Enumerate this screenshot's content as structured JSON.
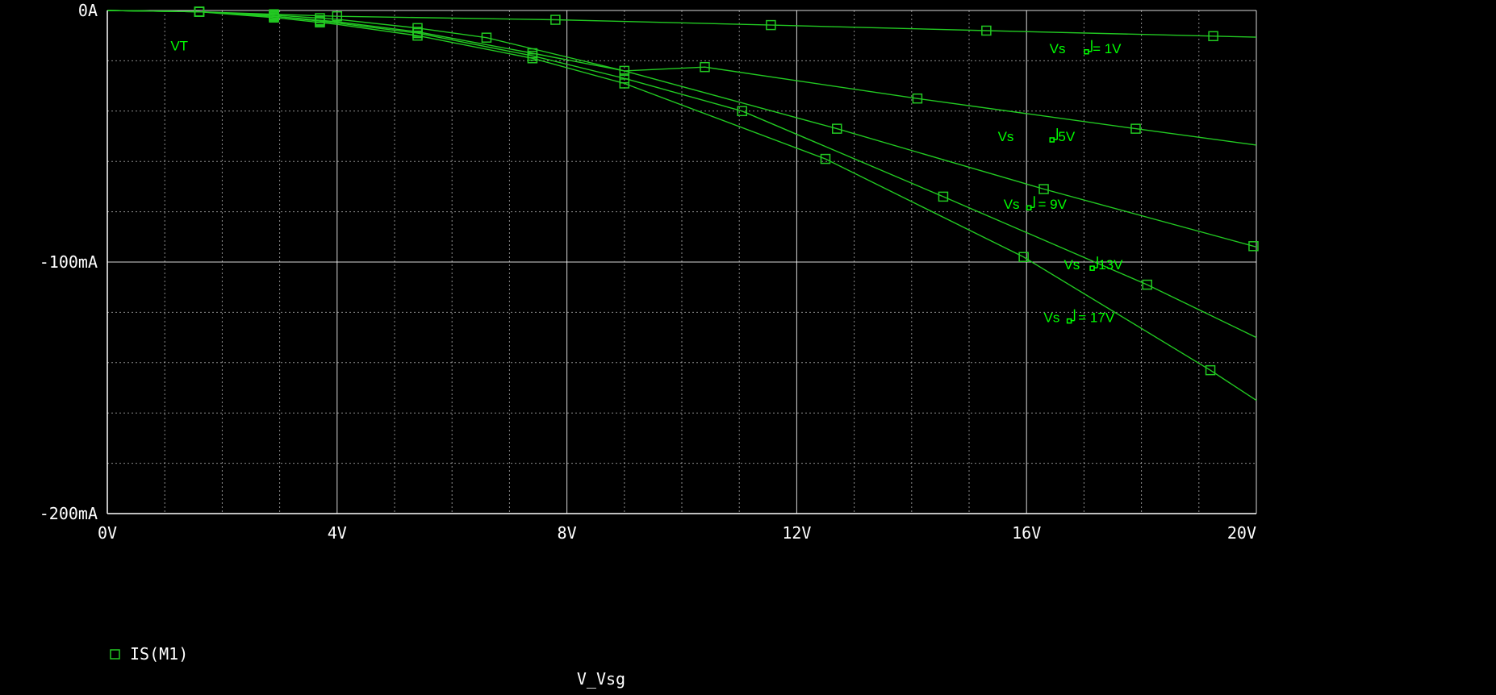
{
  "colors": {
    "background": "#000000",
    "grid": "#ffffff",
    "axis_text": "#ffffff",
    "trace": "#22c922",
    "annotation": "#00ff00"
  },
  "chart_data": {
    "type": "line",
    "xlabel": "V_Vsg",
    "ylabel": "",
    "xlim": [
      0,
      20
    ],
    "ylim": [
      -200,
      0
    ],
    "x_unit": "V",
    "y_unit": "mA",
    "grid": true,
    "marker": "square",
    "x_ticks": [
      {
        "value": 0,
        "label": "0V"
      },
      {
        "value": 4,
        "label": "4V"
      },
      {
        "value": 8,
        "label": "8V"
      },
      {
        "value": 12,
        "label": "12V"
      },
      {
        "value": 16,
        "label": "16V"
      },
      {
        "value": 20,
        "label": "20V"
      }
    ],
    "y_ticks": [
      {
        "value": 0,
        "label": "0A"
      },
      {
        "value": -100,
        "label": "-100mA"
      },
      {
        "value": -200,
        "label": "-200mA"
      }
    ],
    "legend": [
      {
        "marker": "□",
        "label": "IS(M1)"
      }
    ],
    "annotations": [
      {
        "text": "VT",
        "x": 1.1,
        "y": -14
      },
      {
        "text": "Vs",
        "x": 16.4,
        "y": -15
      },
      {
        "text": "= 1V",
        "x": 17.15,
        "y": -15
      },
      {
        "text": "Vs",
        "x": 15.5,
        "y": -50
      },
      {
        "text": "5V",
        "x": 16.55,
        "y": -50
      },
      {
        "text": "Vs",
        "x": 15.6,
        "y": -77
      },
      {
        "text": "= 9V",
        "x": 16.2,
        "y": -77
      },
      {
        "text": "Vs",
        "x": 16.65,
        "y": -101
      },
      {
        "text": "13V",
        "x": 17.25,
        "y": -101
      },
      {
        "text": "Vs",
        "x": 16.3,
        "y": -122
      },
      {
        "text": "= 17V",
        "x": 16.9,
        "y": -122
      }
    ],
    "series": [
      {
        "x": [
          0,
          1.6,
          2.9,
          4,
          7.8,
          11.55,
          15.3,
          19.25,
          20
        ],
        "values": [
          0,
          -0.5,
          -1.5,
          -2.3,
          -3.7,
          -5.8,
          -8,
          -10.2,
          -10.6
        ],
        "markers": [
          1.6,
          2.9,
          4,
          7.8,
          11.55,
          15.3,
          19.25
        ]
      },
      {
        "x": [
          0,
          1.6,
          3,
          4,
          5.4,
          6.6,
          9,
          10.4,
          14.1,
          17.9,
          20
        ],
        "values": [
          0,
          -0.5,
          -2,
          -3.5,
          -7,
          -10.8,
          -24,
          -22.5,
          -35,
          -47,
          -53.5
        ],
        "markers": [
          1.6,
          2.9,
          3.7,
          5.4,
          6.6,
          10.4,
          14.1,
          17.9
        ]
      },
      {
        "x": [
          0,
          1.6,
          3,
          4,
          5.4,
          7.4,
          9,
          12.7,
          16.3,
          20
        ],
        "values": [
          0,
          -0.5,
          -2.5,
          -4.5,
          -8.5,
          -17,
          -24,
          -47,
          -71,
          -94
        ],
        "markers": [
          1.6,
          2.9,
          3.7,
          5.4,
          7.4,
          9,
          12.7,
          16.3,
          19.95
        ]
      },
      {
        "x": [
          0,
          1.6,
          3,
          4,
          5.4,
          7.4,
          9,
          11.05,
          14.55,
          18.1,
          20
        ],
        "values": [
          0,
          -0.5,
          -2.5,
          -5,
          -9,
          -18,
          -27,
          -40,
          -74,
          -109,
          -130
        ],
        "markers": [
          1.6,
          2.9,
          3.7,
          5.4,
          7.4,
          9,
          11.05,
          14.55,
          18.1
        ]
      },
      {
        "x": [
          0,
          1.6,
          3,
          4,
          5.4,
          7.4,
          9,
          12.5,
          15.95,
          19.2,
          20
        ],
        "values": [
          0,
          -0.5,
          -3,
          -5.5,
          -10,
          -19,
          -29,
          -59,
          -98,
          -143,
          -155
        ],
        "markers": [
          1.6,
          2.9,
          3.7,
          5.4,
          7.4,
          9,
          12.5,
          15.95,
          19.2
        ]
      }
    ]
  }
}
